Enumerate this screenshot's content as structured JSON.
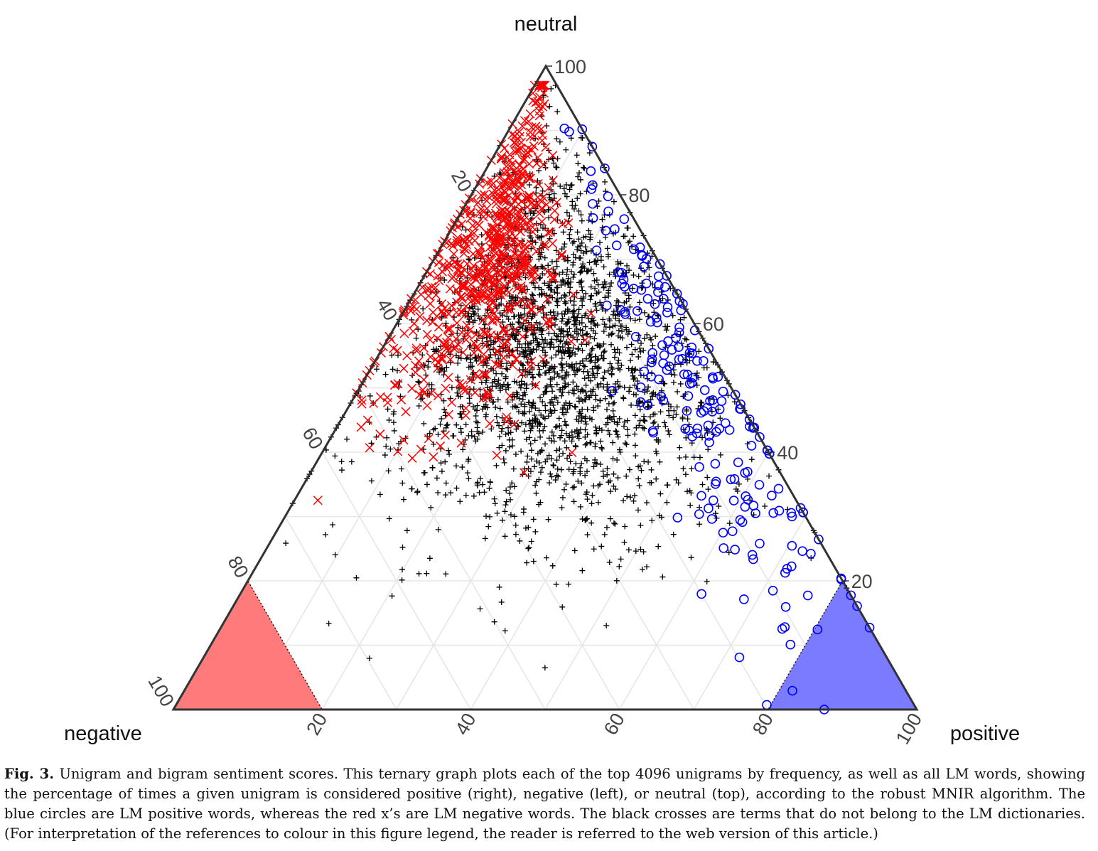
{
  "chart_data": {
    "type": "scatter",
    "subtype": "ternary",
    "vertices": {
      "top": "neutral",
      "left": "negative",
      "right": "positive"
    },
    "ticks": {
      "neutral": [
        "20",
        "40",
        "60",
        "80",
        "100"
      ],
      "negative": [
        "20",
        "40",
        "60",
        "80",
        "100"
      ],
      "positive": [
        "20",
        "40",
        "60",
        "80",
        "100"
      ]
    },
    "grid": true,
    "shaded_regions": [
      {
        "corner": "negative",
        "min_percent": 80,
        "color": "#ff7b7b"
      },
      {
        "corner": "positive",
        "min_percent": 80,
        "color": "#7b7bff"
      }
    ],
    "series": [
      {
        "marker": "plus",
        "color": "#000000",
        "count": 2200,
        "neutral_mean": 55,
        "neutral_sd": 14,
        "positive_share_mean": 0.52,
        "positive_share_sd": 0.22
      },
      {
        "marker": "x",
        "color": "#ff0000",
        "count": 700,
        "neutral_mean": 70,
        "neutral_sd": 12,
        "positive_share_mean": 0.25,
        "positive_share_sd": 0.14
      },
      {
        "marker": "circle",
        "color": "#0000ff",
        "count": 200,
        "neutral_mean": 50,
        "neutral_sd": 20,
        "positive_share_mean": 0.9,
        "positive_share_sd": 0.08
      }
    ]
  },
  "caption": {
    "label": "Fig. 3.",
    "text": "Unigram and bigram sentiment scores. This ternary graph plots each of the top 4096 unigrams by frequency, as well as all LM words, showing the percentage of times a given unigram is considered positive (right), negative (left), or neutral (top), according to the robust MNIR algorithm. The blue circles are LM positive words, whereas the red x’s are LM negative words. The black crosses are terms that do not belong to the LM dictionaries. (For interpretation of the references to colour in this figure legend, the reader is referred to the web version of this article.)"
  }
}
